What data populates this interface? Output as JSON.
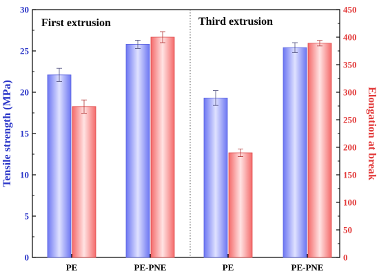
{
  "chart_data": {
    "type": "bar",
    "panels": [
      {
        "title": "First extrusion",
        "categories": [
          "PE",
          "PE-PNE"
        ]
      },
      {
        "title": "Third extrusion",
        "categories": [
          "PE",
          "PE-PNE"
        ]
      }
    ],
    "categories": [
      "PE",
      "PE-PNE",
      "PE",
      "PE-PNE"
    ],
    "series": [
      {
        "name": "Tensile strength (MPa)",
        "axis": "left",
        "color": "#8f97ff",
        "values": [
          22.1,
          25.8,
          19.3,
          25.4
        ],
        "errors": [
          0.8,
          0.5,
          0.9,
          0.6
        ]
      },
      {
        "name": "Elongation at break",
        "axis": "right",
        "color": "#ff8a8a",
        "values": [
          274,
          400,
          190,
          389
        ],
        "errors": [
          12,
          10,
          7,
          5
        ]
      }
    ],
    "ylabel_left": "Tensile strength (MPa)",
    "ylabel_right": "Elongation at break",
    "ylim_left": [
      0,
      30
    ],
    "ylim_right": [
      0,
      450
    ],
    "yticks_left": [
      "0",
      "5",
      "10",
      "15",
      "20",
      "25",
      "30"
    ],
    "yticks_right": [
      "0",
      "50",
      "100",
      "150",
      "200",
      "250",
      "300",
      "350",
      "400",
      "450"
    ],
    "left_axis_color": "#2a35c8",
    "right_axis_color": "#e23a3a",
    "divider": "dotted vertical line between panels",
    "grid": false
  }
}
